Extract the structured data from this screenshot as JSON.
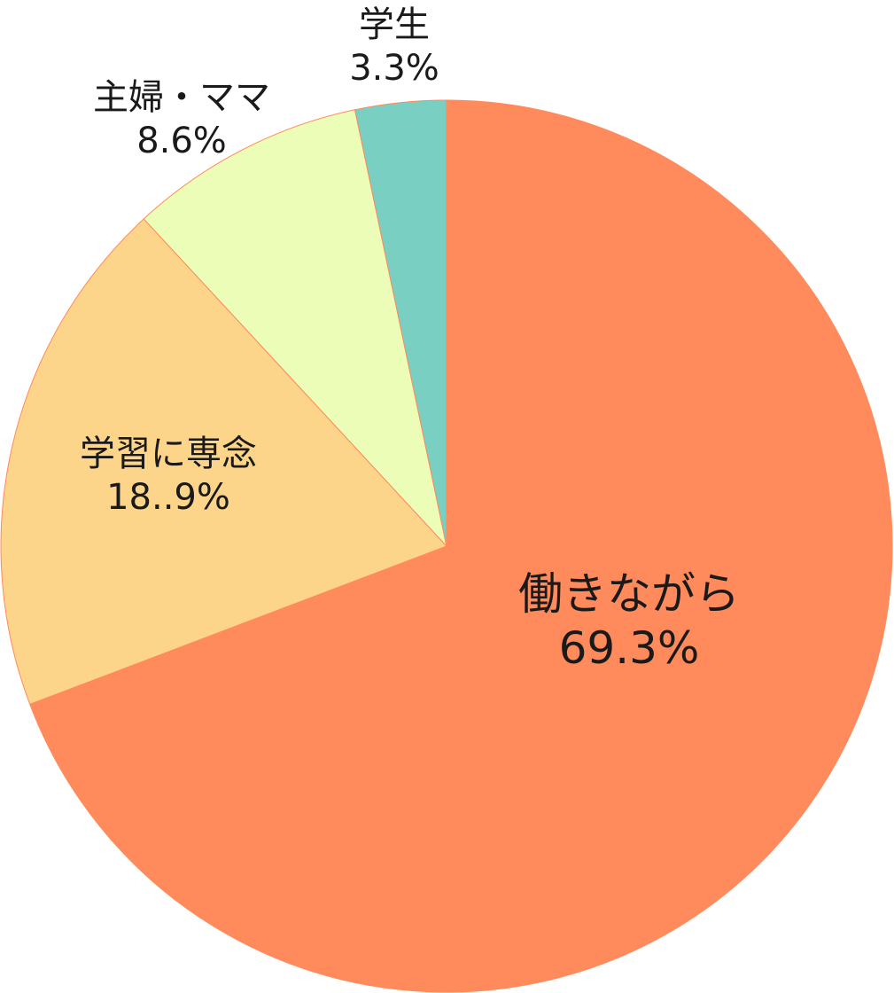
{
  "chart_data": {
    "type": "pie",
    "start": "12 o'clock, clockwise",
    "slices": [
      {
        "label": "働きながら",
        "value": 69.3,
        "value_text": "69.3%",
        "color": "#FF8A5B"
      },
      {
        "label": "学習に専念",
        "value": 18.9,
        "value_text": "18..9%",
        "color": "#FCD58B"
      },
      {
        "label": "主婦・ママ",
        "value": 8.6,
        "value_text": "8.6%",
        "color": "#EBFDB6"
      },
      {
        "label": "学生",
        "value": 3.3,
        "value_text": "3.3%",
        "color": "#79CFC1"
      }
    ]
  }
}
